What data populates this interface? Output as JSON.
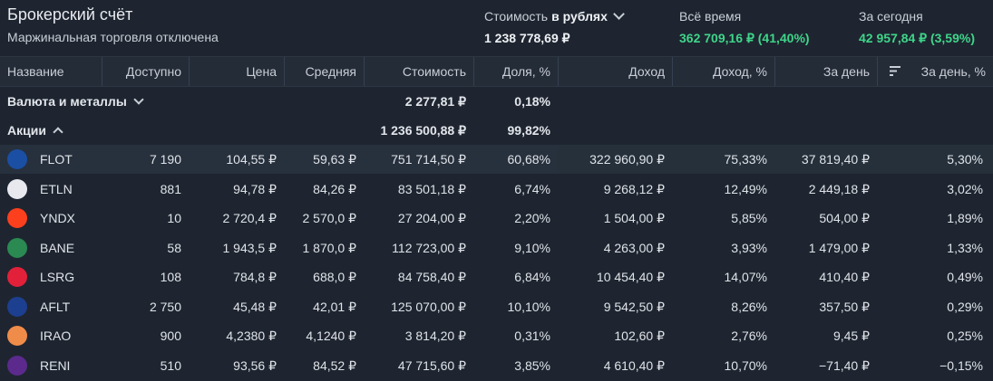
{
  "header": {
    "title": "Брокерский счёт",
    "subtitle": "Маржинальная торговля отключена",
    "value": {
      "label_prefix": "Стоимость",
      "label_strong": "в рублях",
      "amount": "1 238 778,69 ₽"
    },
    "all_time": {
      "label": "Всё время",
      "amount": "362 709,16 ₽ (41,40%)"
    },
    "today": {
      "label": "За сегодня",
      "amount": "42 957,84 ₽ (3,59%)"
    }
  },
  "columns": [
    "Название",
    "Доступно",
    "Цена",
    "Средняя",
    "Стоимость",
    "Доля, %",
    "Доход",
    "Доход, %",
    "За день",
    "За день, %"
  ],
  "groups": {
    "currency": {
      "name": "Валюта и металлы",
      "value": "2 277,81 ₽",
      "share": "0,18%"
    },
    "stocks": {
      "name": "Акции",
      "value": "1 236 500,88 ₽",
      "share": "99,82%"
    }
  },
  "rows": [
    {
      "ticker": "FLOT",
      "available": "7 190",
      "price": "104,55 ₽",
      "avg": "59,63 ₽",
      "value": "751 714,50 ₽",
      "share": "60,68%",
      "income": "322 960,90 ₽",
      "income_pct": "75,33%",
      "day": "37 819,40 ₽",
      "day_pct": "5,30%",
      "day_neg": false,
      "logo": "scf-logo",
      "logo_color": "#1a4fa3"
    },
    {
      "ticker": "ETLN",
      "available": "881",
      "price": "94,78 ₽",
      "avg": "84,26 ₽",
      "value": "83 501,18 ₽",
      "share": "6,74%",
      "income": "9 268,12 ₽",
      "income_pct": "12,49%",
      "day": "2 449,18 ₽",
      "day_pct": "3,02%",
      "day_neg": false,
      "logo": "etalon-logo",
      "logo_color": "#e8e9ee"
    },
    {
      "ticker": "YNDX",
      "available": "10",
      "price": "2 720,4 ₽",
      "avg": "2 570,0 ₽",
      "value": "27 204,00 ₽",
      "share": "2,20%",
      "income": "1 504,00 ₽",
      "income_pct": "5,85%",
      "day": "504,00 ₽",
      "day_pct": "1,89%",
      "day_neg": false,
      "logo": "yandex-logo",
      "logo_color": "#fc3f1d"
    },
    {
      "ticker": "BANE",
      "available": "58",
      "price": "1 943,5 ₽",
      "avg": "1 870,0 ₽",
      "value": "112 723,00 ₽",
      "share": "9,10%",
      "income": "4 263,00 ₽",
      "income_pct": "3,93%",
      "day": "1 479,00 ₽",
      "day_pct": "1,33%",
      "day_neg": false,
      "logo": "bashneft-logo",
      "logo_color": "#2a8a52"
    },
    {
      "ticker": "LSRG",
      "available": "108",
      "price": "784,8 ₽",
      "avg": "688,0 ₽",
      "value": "84 758,40 ₽",
      "share": "6,84%",
      "income": "10 454,40 ₽",
      "income_pct": "14,07%",
      "day": "410,40 ₽",
      "day_pct": "0,49%",
      "day_neg": false,
      "logo": "lsr-logo",
      "logo_color": "#e2203a"
    },
    {
      "ticker": "AFLT",
      "available": "2 750",
      "price": "45,48 ₽",
      "avg": "42,01 ₽",
      "value": "125 070,00 ₽",
      "share": "10,10%",
      "income": "9 542,50 ₽",
      "income_pct": "8,26%",
      "day": "357,50 ₽",
      "day_pct": "0,29%",
      "day_neg": false,
      "logo": "aeroflot-logo",
      "logo_color": "#1d3f8f"
    },
    {
      "ticker": "IRAO",
      "available": "900",
      "price": "4,2380 ₽",
      "avg": "4,1240 ₽",
      "value": "3 814,20 ₽",
      "share": "0,31%",
      "income": "102,60 ₽",
      "income_pct": "2,76%",
      "day": "9,45 ₽",
      "day_pct": "0,25%",
      "day_neg": false,
      "logo": "interrao-logo",
      "logo_color": "#f08c4a"
    },
    {
      "ticker": "RENI",
      "available": "510",
      "price": "93,56 ₽",
      "avg": "84,52 ₽",
      "value": "47 715,60 ₽",
      "share": "3,85%",
      "income": "4 610,40 ₽",
      "income_pct": "10,70%",
      "day": "−71,40 ₽",
      "day_pct": "−0,15%",
      "day_neg": true,
      "logo": "renessans-logo",
      "logo_color": "#5b2a8c"
    }
  ]
}
